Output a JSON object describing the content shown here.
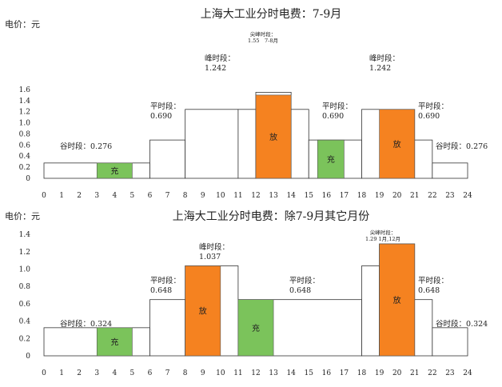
{
  "chart_data": [
    {
      "type": "bar",
      "title": "上海大工业分时电费：7-9月",
      "ylabel": "电价：元",
      "ylim": [
        0,
        1.6
      ],
      "yticks": [
        "0",
        "0.2",
        "0.4",
        "0.6",
        "0.8",
        "1.0",
        "1.2",
        "1.4",
        "1.6"
      ],
      "xlim": [
        0,
        24
      ],
      "xticks": [
        "0",
        "1",
        "2",
        "3",
        "4",
        "5",
        "6",
        "7",
        "8",
        "9",
        "10",
        "11",
        "12",
        "13",
        "14",
        "15",
        "16",
        "17",
        "18",
        "19",
        "20",
        "21",
        "22",
        "23",
        "24"
      ],
      "grid": false,
      "tariff_steps": [
        {
          "start": 0,
          "end": 6,
          "value": 0.276,
          "label": "谷时段：",
          "value_label": "0.276"
        },
        {
          "start": 6,
          "end": 8,
          "value": 0.69,
          "label": "平时段：",
          "value_label": "0.690"
        },
        {
          "start": 8,
          "end": 11,
          "value": 1.242,
          "label": "峰时段：",
          "value_label": "1.242"
        },
        {
          "start": 11,
          "end": 12,
          "value": 1.242,
          "label": "",
          "value_label": ""
        },
        {
          "start": 12,
          "end": 14,
          "value": 1.55,
          "label": "尖峰时段：",
          "value_label": "1.55　7-8月"
        },
        {
          "start": 14,
          "end": 15,
          "value": 1.242,
          "label": "",
          "value_label": ""
        },
        {
          "start": 15,
          "end": 18,
          "value": 0.69,
          "label": "平时段：",
          "value_label": "0.690"
        },
        {
          "start": 18,
          "end": 21,
          "value": 1.242,
          "label": "峰时段：",
          "value_label": "1.242"
        },
        {
          "start": 21,
          "end": 22,
          "value": 0.69,
          "label": "平时段：",
          "value_label": "0.690"
        },
        {
          "start": 22,
          "end": 24,
          "value": 0.276,
          "label": "谷时段：",
          "value_label": "0.276"
        }
      ],
      "operations": [
        {
          "start": 3,
          "end": 5,
          "value": 0.276,
          "action": "充",
          "color": "#7bc35b"
        },
        {
          "start": 12,
          "end": 14,
          "value": 1.5,
          "action": "放",
          "color": "#f58220"
        },
        {
          "start": 15.5,
          "end": 17,
          "value": 0.69,
          "action": "充",
          "color": "#7bc35b"
        },
        {
          "start": 19,
          "end": 21,
          "value": 1.242,
          "action": "放",
          "color": "#f58220"
        }
      ]
    },
    {
      "type": "bar",
      "title": "上海大工业分时电费：除7-9月其它月份",
      "ylabel": "电价：元",
      "ylim": [
        0,
        1.4
      ],
      "yticks": [
        "0",
        "0.2",
        "0.4",
        "0.6",
        "0.8",
        "1.0",
        "1.2",
        "1.4"
      ],
      "xlim": [
        0,
        24
      ],
      "xticks": [
        "0",
        "1",
        "2",
        "3",
        "4",
        "5",
        "6",
        "7",
        "8",
        "9",
        "10",
        "11",
        "12",
        "13",
        "14",
        "15",
        "16",
        "17",
        "18",
        "19",
        "20",
        "21",
        "22",
        "23",
        "24"
      ],
      "grid": false,
      "tariff_steps": [
        {
          "start": 0,
          "end": 6,
          "value": 0.324,
          "label": "谷时段：",
          "value_label": "0.324"
        },
        {
          "start": 6,
          "end": 8,
          "value": 0.648,
          "label": "平时段：",
          "value_label": "0.648"
        },
        {
          "start": 8,
          "end": 11,
          "value": 1.037,
          "label": "峰时段：",
          "value_label": "1.037"
        },
        {
          "start": 11,
          "end": 18,
          "value": 0.648,
          "label": "平时段：",
          "value_label": "0.648"
        },
        {
          "start": 18,
          "end": 19,
          "value": 1.037,
          "label": "",
          "value_label": ""
        },
        {
          "start": 19,
          "end": 21,
          "value": 1.29,
          "label": "尖峰时段：",
          "value_label": "1.29 1月,12月"
        },
        {
          "start": 21,
          "end": 22,
          "value": 0.648,
          "label": "平时段：",
          "value_label": "0.648"
        },
        {
          "start": 22,
          "end": 24,
          "value": 0.324,
          "label": "谷时段：",
          "value_label": "0.324"
        }
      ],
      "operations": [
        {
          "start": 3,
          "end": 5,
          "value": 0.324,
          "action": "充",
          "color": "#7bc35b"
        },
        {
          "start": 8,
          "end": 10,
          "value": 1.037,
          "action": "放",
          "color": "#f58220"
        },
        {
          "start": 11,
          "end": 13,
          "value": 0.648,
          "action": "充",
          "color": "#7bc35b"
        },
        {
          "start": 19,
          "end": 21,
          "value": 1.29,
          "action": "放",
          "color": "#f58220"
        }
      ]
    }
  ]
}
